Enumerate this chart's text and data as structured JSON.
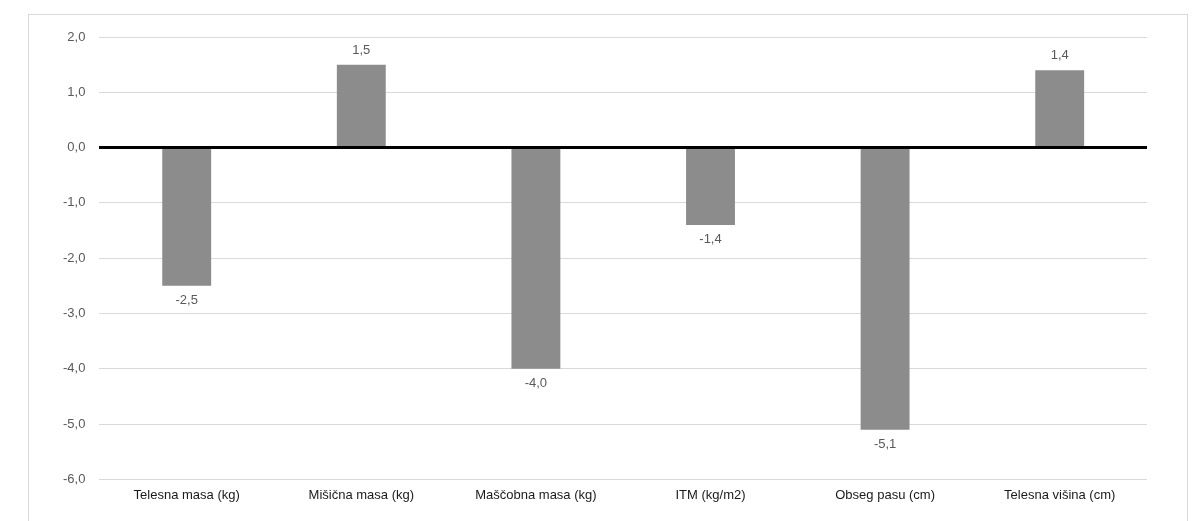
{
  "chart_data": {
    "type": "bar",
    "categories": [
      "Telesna masa (kg)",
      "Mišična masa (kg)",
      "Maščobna masa (kg)",
      "ITM (kg/m2)",
      "Obseg pasu (cm)",
      "Telesna višina (cm)"
    ],
    "values": [
      -2.5,
      1.5,
      -4.0,
      -1.4,
      -5.1,
      1.4
    ],
    "value_labels": [
      "-2,5",
      "1,5",
      "-4,0",
      "-1,4",
      "-5,1",
      "1,4"
    ],
    "color": "#8c8c8c",
    "ylim": [
      -6,
      2
    ],
    "yticks": [
      {
        "value": -6,
        "label": "-6,0"
      },
      {
        "value": -5,
        "label": "-5,0"
      },
      {
        "value": -4,
        "label": "-4,0"
      },
      {
        "value": -3,
        "label": "-3,0"
      },
      {
        "value": -2,
        "label": "-2,0"
      },
      {
        "value": -1,
        "label": "-1,0"
      },
      {
        "value": 0,
        "label": "0,0"
      },
      {
        "value": 1,
        "label": "1,0"
      },
      {
        "value": 2,
        "label": "2,0"
      }
    ],
    "grid": "y",
    "legend": false
  }
}
